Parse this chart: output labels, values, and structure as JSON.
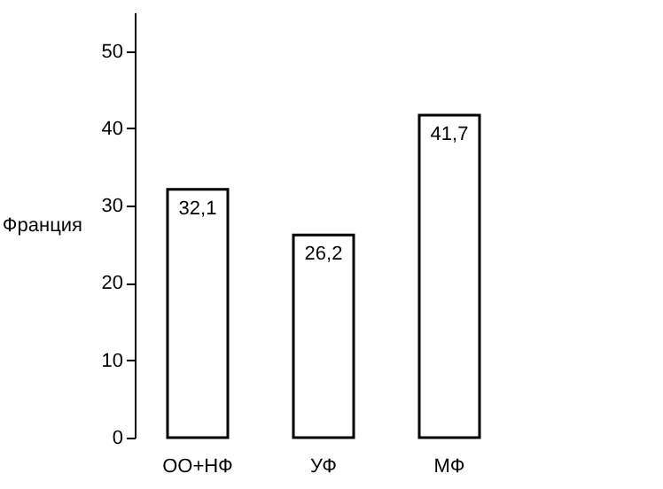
{
  "chart_data": {
    "type": "bar",
    "ylabel": "Франция",
    "categories": [
      "ОО+НФ",
      "УФ",
      "МФ"
    ],
    "values": [
      32.1,
      26.2,
      41.7
    ],
    "value_labels": [
      "32,1",
      "26,2",
      "41,7"
    ],
    "color": "#ffffff",
    "ylim": [
      0,
      55
    ],
    "yticks": [
      0,
      10,
      20,
      30,
      40,
      50
    ],
    "grid": false
  }
}
